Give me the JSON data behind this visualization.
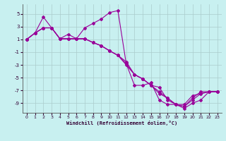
{
  "xlabel": "Windchill (Refroidissement éolien,°C)",
  "background_color": "#c8f0f0",
  "line_color": "#990099",
  "grid_color": "#aacccc",
  "xlim": [
    -0.5,
    23.5
  ],
  "ylim": [
    -10.5,
    6.5
  ],
  "yticks": [
    -9,
    -7,
    -5,
    -3,
    -1,
    1,
    3,
    5
  ],
  "xticks": [
    0,
    1,
    2,
    3,
    4,
    5,
    6,
    7,
    8,
    9,
    10,
    11,
    12,
    13,
    14,
    15,
    16,
    17,
    18,
    19,
    20,
    21,
    22,
    23
  ],
  "series": [
    {
      "x": [
        0,
        1,
        2,
        3,
        4,
        5,
        6,
        7,
        8,
        9,
        10,
        11,
        12,
        13,
        14,
        15,
        16,
        17,
        18,
        19,
        20,
        21,
        22,
        23
      ],
      "y": [
        1,
        2,
        4.5,
        2.8,
        1.1,
        1.8,
        1.1,
        2.8,
        3.5,
        4.2,
        5.2,
        5.5,
        -2.8,
        -6.2,
        -6.2,
        -5.8,
        -8.5,
        -9.2,
        -9.2,
        -9.2,
        -7.8,
        -7.5,
        -7.2,
        -7.2
      ]
    },
    {
      "x": [
        0,
        1,
        2,
        3,
        4,
        5,
        6,
        7,
        8,
        9,
        10,
        11,
        12,
        13,
        14,
        15,
        16,
        17,
        18,
        19,
        20,
        21,
        22,
        23
      ],
      "y": [
        1,
        2,
        2.8,
        2.8,
        1.1,
        1.1,
        1.1,
        1.1,
        0.5,
        0,
        -0.8,
        -1.5,
        -2.5,
        -4.5,
        -5.2,
        -6.2,
        -6.5,
        -8.5,
        -9.2,
        -9.5,
        -8.2,
        -7.2,
        -7.2,
        -7.2
      ]
    },
    {
      "x": [
        0,
        1,
        2,
        3,
        4,
        5,
        6,
        7,
        8,
        9,
        10,
        11,
        12,
        13,
        14,
        15,
        16,
        17,
        18,
        19,
        20,
        21,
        22,
        23
      ],
      "y": [
        1,
        2,
        2.8,
        2.8,
        1.1,
        1.1,
        1.1,
        1.1,
        0.5,
        0,
        -0.8,
        -1.5,
        -2.8,
        -4.5,
        -5.2,
        -6.2,
        -7.2,
        -8.2,
        -9.2,
        -9.5,
        -8.5,
        -7.5,
        -7.2,
        -7.2
      ]
    },
    {
      "x": [
        0,
        1,
        2,
        3,
        4,
        5,
        6,
        7,
        8,
        9,
        10,
        11,
        12,
        13,
        14,
        15,
        16,
        17,
        18,
        19,
        20,
        21,
        22,
        23
      ],
      "y": [
        1,
        2,
        2.8,
        2.8,
        1.1,
        1.1,
        1.1,
        1.1,
        0.5,
        0,
        -0.8,
        -1.5,
        -3.0,
        -4.5,
        -5.2,
        -6.2,
        -7.5,
        -8.2,
        -9.2,
        -9.8,
        -9.0,
        -8.5,
        -7.2,
        -7.2
      ]
    }
  ]
}
